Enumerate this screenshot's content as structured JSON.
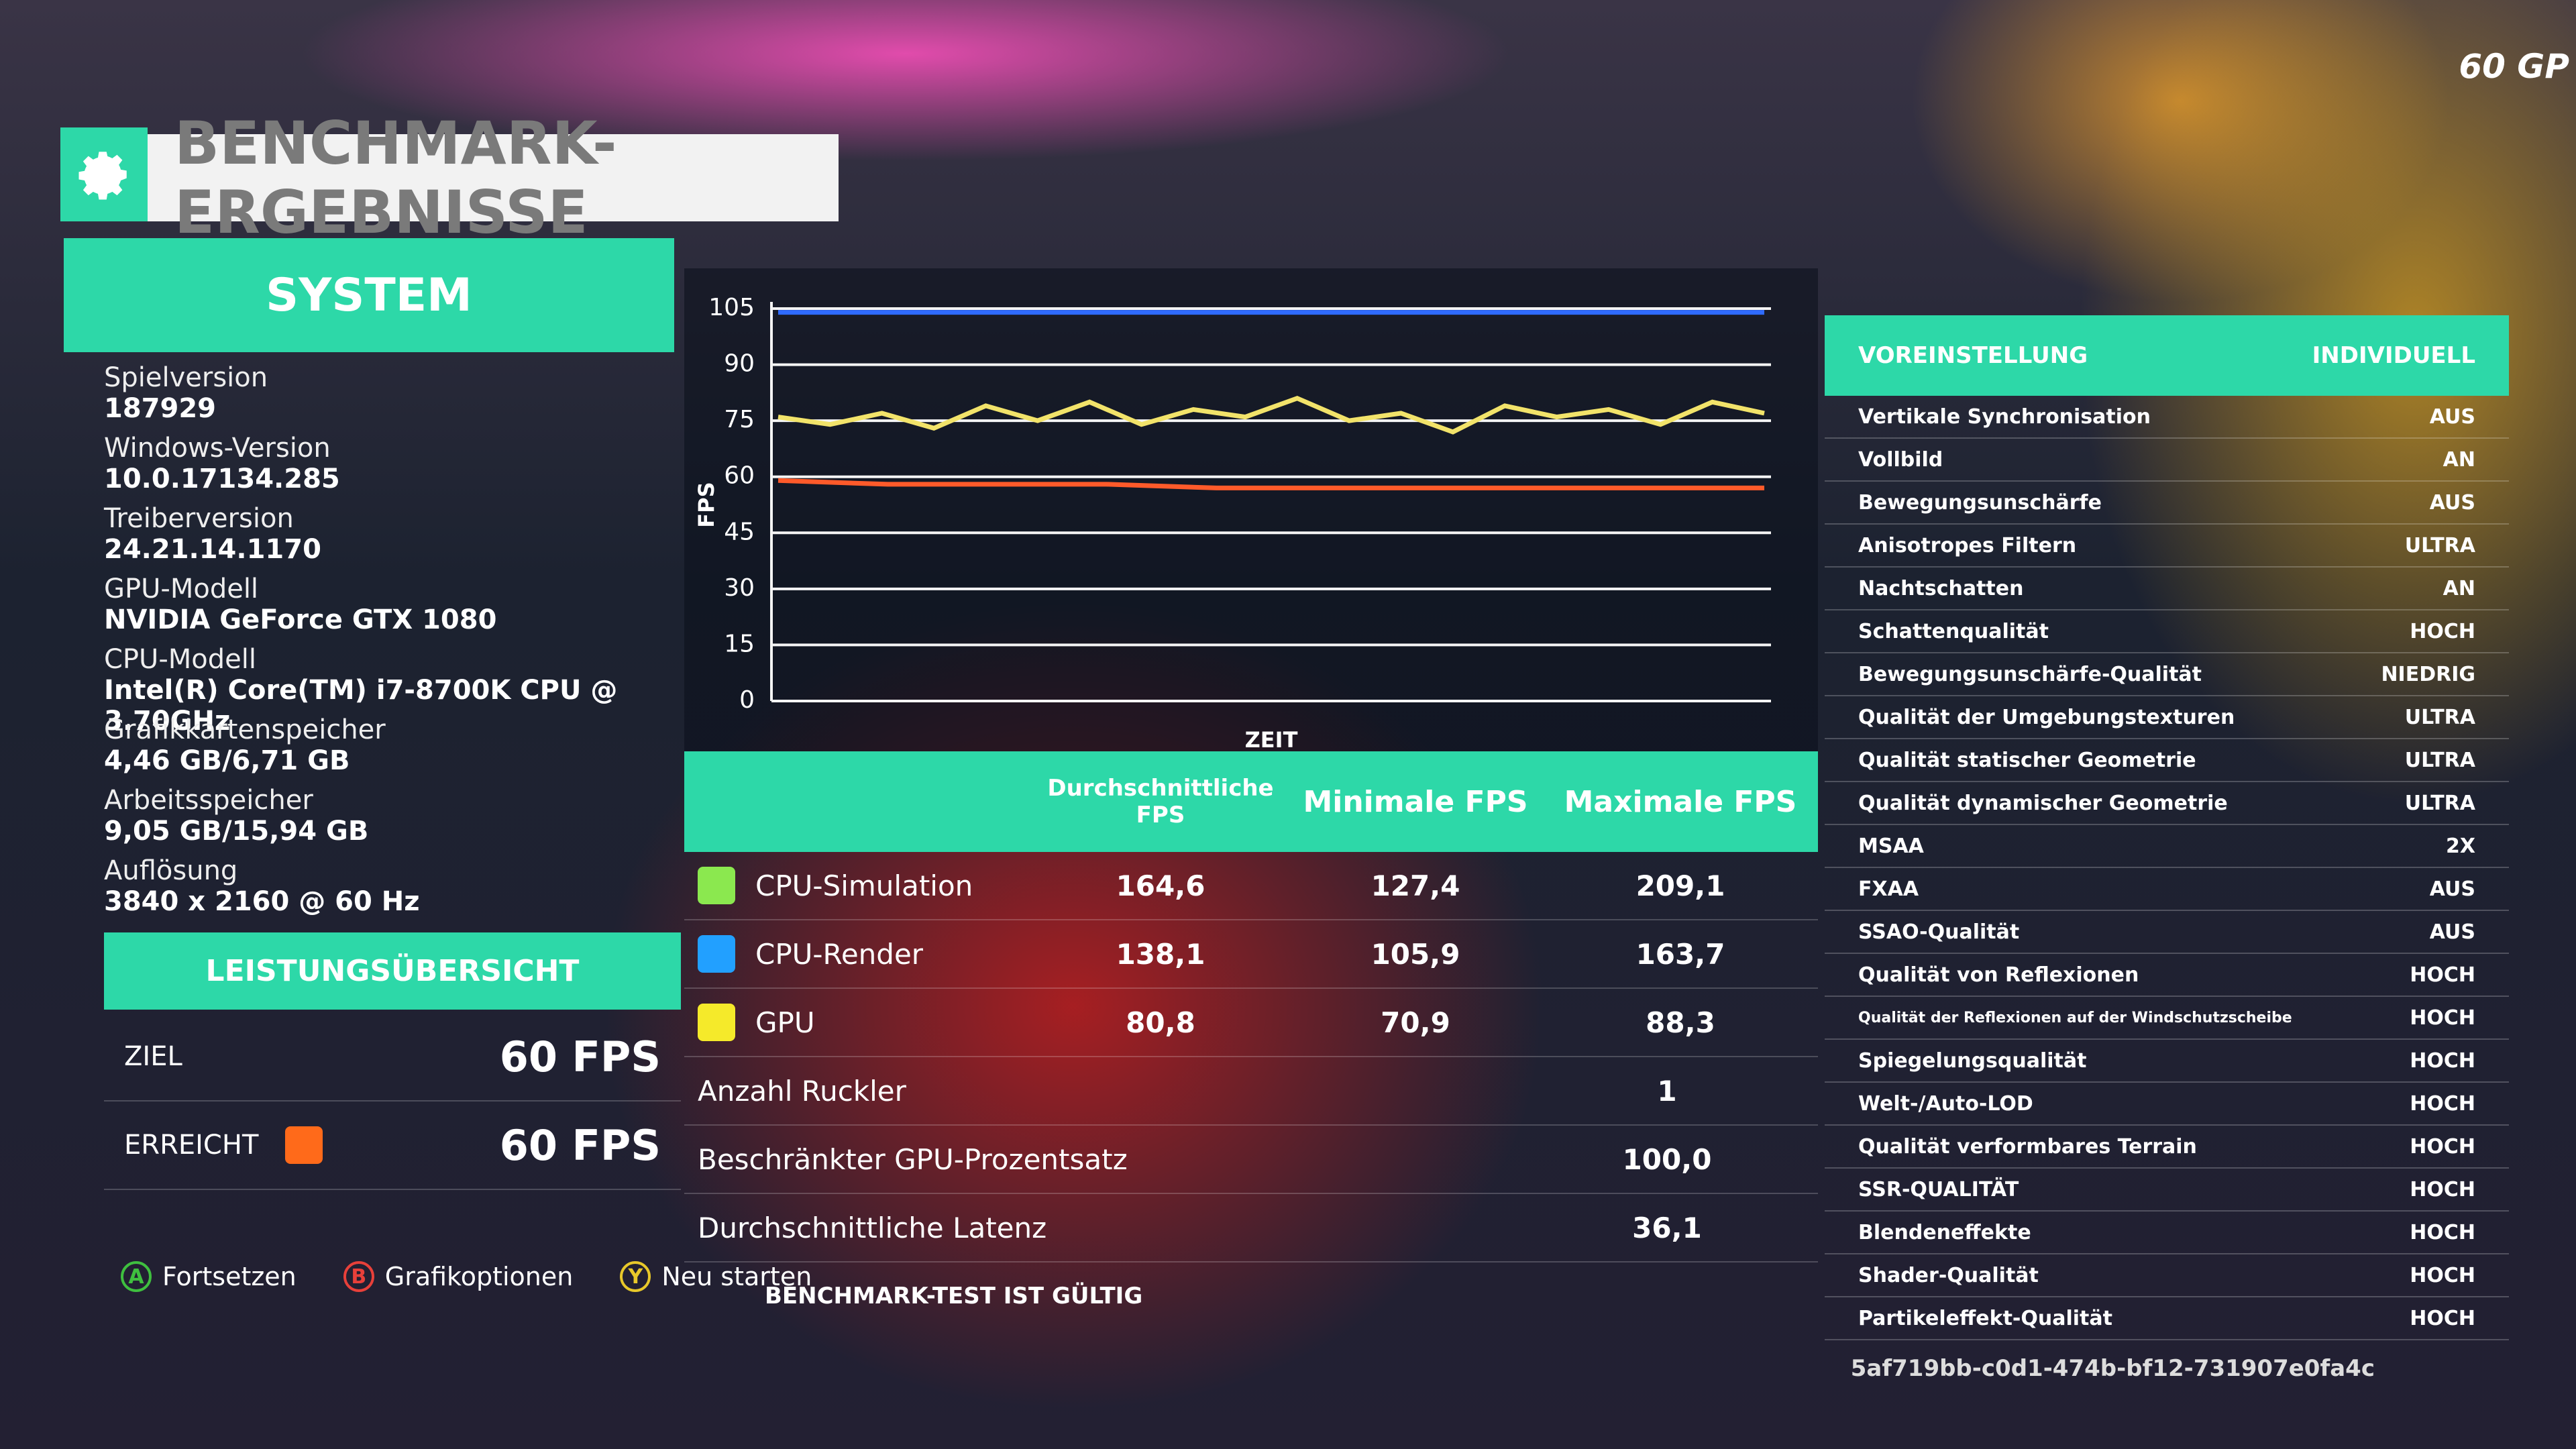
{
  "header": {
    "title": "BENCHMARK-ERGEBNISSE",
    "corner": "60 GP"
  },
  "system": {
    "title": "SYSTEM",
    "items": [
      {
        "label": "Spielversion",
        "value": "187929"
      },
      {
        "label": "Windows-Version",
        "value": "10.0.17134.285"
      },
      {
        "label": "Treiberversion",
        "value": "24.21.14.1170"
      },
      {
        "label": "GPU-Modell",
        "value": "NVIDIA GeForce GTX 1080"
      },
      {
        "label": "CPU-Modell",
        "value": "Intel(R) Core(TM) i7-8700K CPU @ 3.70GHz"
      },
      {
        "label": "Grafikkartenspeicher",
        "value": "4,46 GB/6,71 GB"
      },
      {
        "label": "Arbeitsspeicher",
        "value": "9,05 GB/15,94 GB"
      },
      {
        "label": "Auflösung",
        "value": "3840 x 2160 @ 60 Hz"
      }
    ]
  },
  "performance": {
    "title": "LEISTUNGSÜBERSICHT",
    "rows": [
      {
        "label": "ZIEL",
        "value": "60 FPS"
      },
      {
        "label": "ERREICHT",
        "value": "60 FPS",
        "color": "#ff6a1a"
      }
    ]
  },
  "chart": {
    "type": "line",
    "y_label": "FPS",
    "x_label": "ZEIT",
    "ylim": [
      0,
      105
    ],
    "yticks": [
      0,
      15,
      30,
      45,
      60,
      75,
      90,
      105
    ],
    "grid": true,
    "series": [
      {
        "color": "#2f6bff",
        "values": [
          104,
          104,
          104,
          104,
          104,
          104,
          104,
          104,
          104,
          104
        ]
      },
      {
        "color": "#f2e36a",
        "values": [
          76,
          74,
          77,
          73,
          79,
          75,
          80,
          74,
          78,
          76,
          81,
          75,
          77,
          72,
          79,
          76,
          78,
          74,
          80,
          77
        ]
      },
      {
        "color": "#ff5a2a",
        "values": [
          59,
          58,
          58,
          58,
          57,
          57,
          57,
          57,
          57,
          57
        ]
      }
    ]
  },
  "results": {
    "columns": [
      "Durchschnittliche FPS",
      "Minimale FPS",
      "Maximale FPS"
    ],
    "rows": [
      {
        "label": "CPU-Simulation",
        "color": "#8be84f",
        "values": [
          "164,6",
          "127,4",
          "209,1"
        ]
      },
      {
        "label": "CPU-Render",
        "color": "#22a0ff",
        "values": [
          "138,1",
          "105,9",
          "163,7"
        ]
      },
      {
        "label": "GPU",
        "color": "#f5ea2a",
        "values": [
          "80,8",
          "70,9",
          "88,3"
        ]
      }
    ],
    "extra": [
      {
        "label": "Anzahl Ruckler",
        "value": "1"
      },
      {
        "label": "Beschränkter GPU-Prozentsatz",
        "value": "100,0"
      },
      {
        "label": "Durchschnittliche Latenz",
        "value": "36,1"
      }
    ],
    "footer": "BENCHMARK-TEST IST GÜLTIG"
  },
  "settings": {
    "title": "VOREINSTELLUNG",
    "value": "INDIVIDUELL",
    "rows": [
      {
        "label": "Vertikale Synchronisation",
        "value": "AUS"
      },
      {
        "label": "Vollbild",
        "value": "AN"
      },
      {
        "label": "Bewegungsunschärfe",
        "value": "AUS"
      },
      {
        "label": "Anisotropes Filtern",
        "value": "ULTRA"
      },
      {
        "label": "Nachtschatten",
        "value": "AN"
      },
      {
        "label": "Schattenqualität",
        "value": "HOCH"
      },
      {
        "label": "Bewegungsunschärfe-Qualität",
        "value": "NIEDRIG"
      },
      {
        "label": "Qualität der Umgebungstexturen",
        "value": "ULTRA"
      },
      {
        "label": "Qualität statischer Geometrie",
        "value": "ULTRA"
      },
      {
        "label": "Qualität dynamischer Geometrie",
        "value": "ULTRA"
      },
      {
        "label": "MSAA",
        "value": "2X"
      },
      {
        "label": "FXAA",
        "value": "AUS"
      },
      {
        "label": "SSAO-Qualität",
        "value": "AUS"
      },
      {
        "label": "Qualität von Reflexionen",
        "value": "HOCH"
      },
      {
        "label": "Qualität der Reflexionen auf der Windschutzscheibe",
        "value": "HOCH"
      },
      {
        "label": "Spiegelungsqualität",
        "value": "HOCH"
      },
      {
        "label": "Welt-/Auto-LOD",
        "value": "HOCH"
      },
      {
        "label": "Qualität verformbares Terrain",
        "value": "HOCH"
      },
      {
        "label": "SSR-QUALITÄT",
        "value": "HOCH"
      },
      {
        "label": "Blendeneffekte",
        "value": "HOCH"
      },
      {
        "label": "Shader-Qualität",
        "value": "HOCH"
      },
      {
        "label": "Partikeleffekt-Qualität",
        "value": "HOCH"
      }
    ]
  },
  "buttons": [
    {
      "key": "A",
      "label": "Fortsetzen",
      "color": "#3fbf3f"
    },
    {
      "key": "B",
      "label": "Grafikoptionen",
      "color": "#e8403a"
    },
    {
      "key": "Y",
      "label": "Neu starten",
      "color": "#e8c82a"
    }
  ],
  "id": "5af719bb-c0d1-474b-bf12-731907e0fa4c"
}
